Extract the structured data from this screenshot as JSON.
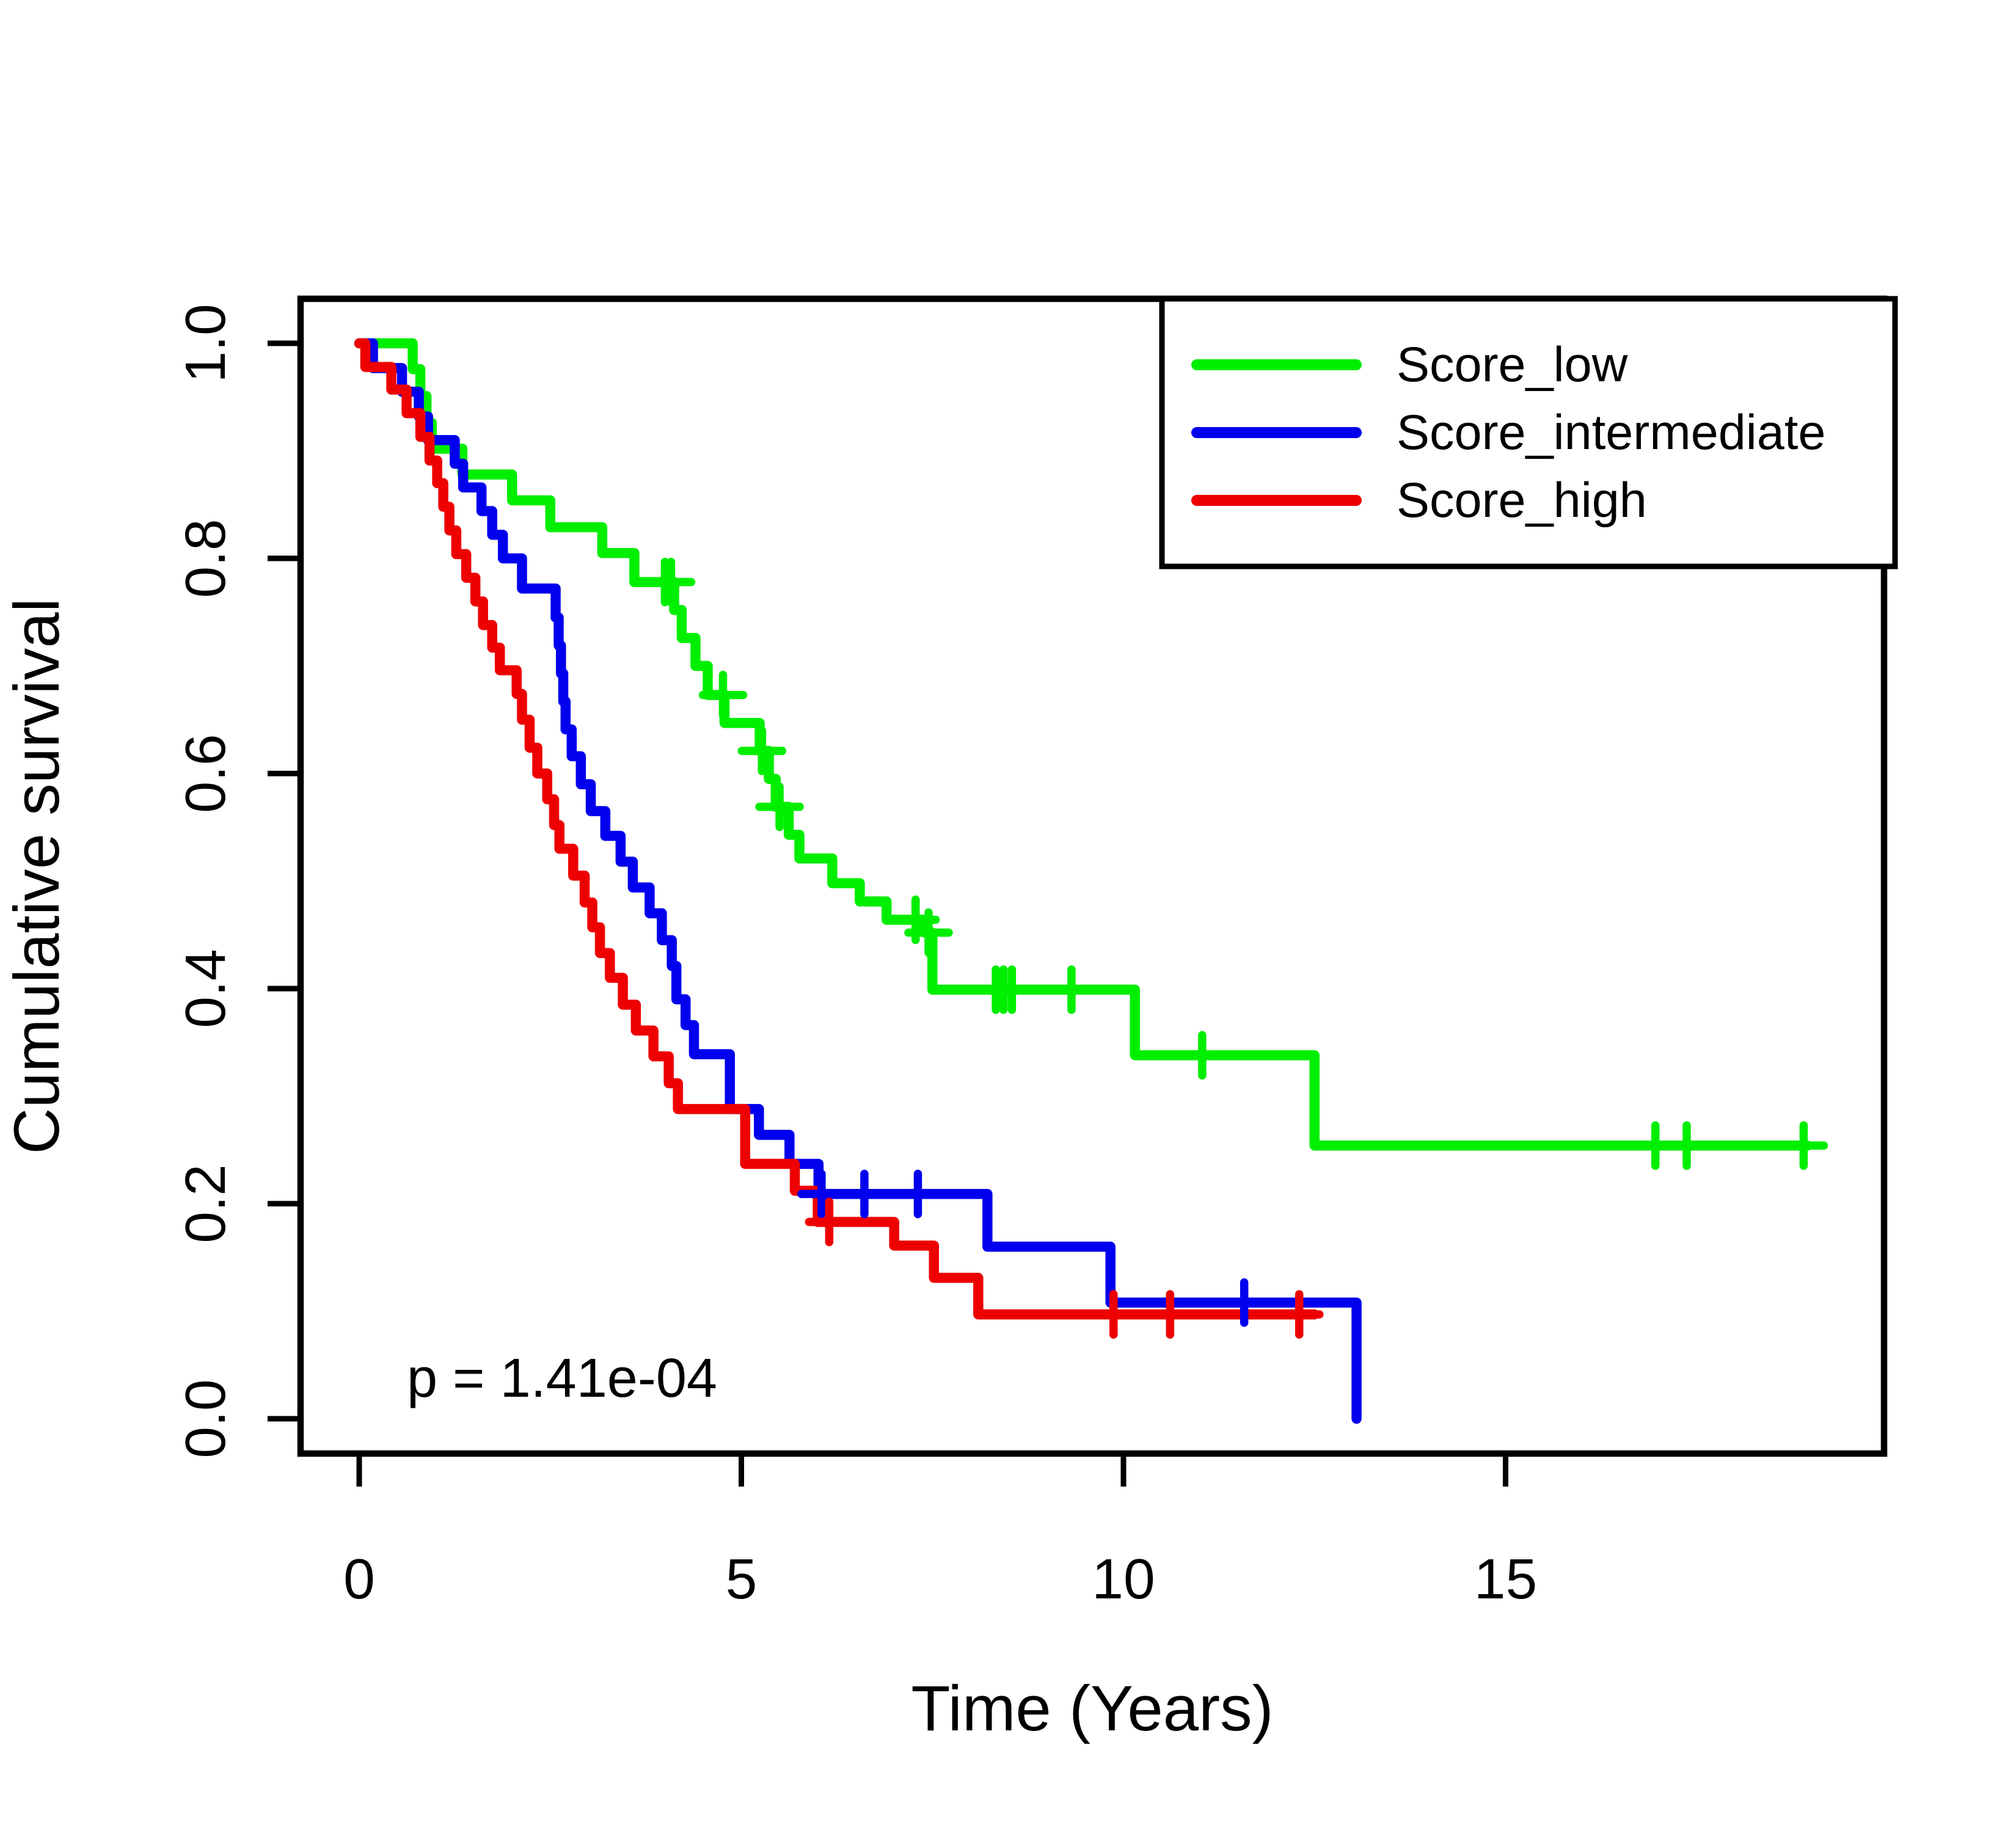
{
  "chart_data": {
    "type": "line",
    "subtype": "kaplan-meier-step",
    "title": "",
    "xlabel": "Time (Years)",
    "ylabel": "Cumulative survival",
    "annotation": "p = 1.41e-04",
    "xlim": [
      -0.77,
      20.0
    ],
    "ylim": [
      -0.04,
      1.04
    ],
    "x_ticks": [
      0,
      5,
      10,
      15
    ],
    "y_ticks": [
      "0.0",
      "0.2",
      "0.4",
      "0.6",
      "0.8",
      "1.0"
    ],
    "grid": false,
    "legend_position": "top-right",
    "frame_color": "#000000",
    "background_color": "#ffffff",
    "series": [
      {
        "name": "Score_low",
        "color": "#00ee00",
        "steps": [
          [
            0,
            1.0
          ],
          [
            0.7,
            0.976
          ],
          [
            0.8,
            0.951
          ],
          [
            0.88,
            0.926
          ],
          [
            0.95,
            0.902
          ],
          [
            1.35,
            0.878
          ],
          [
            2.0,
            0.854
          ],
          [
            2.5,
            0.829
          ],
          [
            3.18,
            0.805
          ],
          [
            3.6,
            0.778
          ],
          [
            4.12,
            0.752
          ],
          [
            4.22,
            0.726
          ],
          [
            4.4,
            0.7
          ],
          [
            4.56,
            0.673
          ],
          [
            4.78,
            0.647
          ],
          [
            5.24,
            0.621
          ],
          [
            5.36,
            0.595
          ],
          [
            5.45,
            0.569
          ],
          [
            5.62,
            0.543
          ],
          [
            5.76,
            0.521
          ],
          [
            6.19,
            0.498
          ],
          [
            6.55,
            0.481
          ],
          [
            6.9,
            0.464
          ],
          [
            7.4,
            0.452
          ],
          [
            7.5,
            0.399
          ],
          [
            10.15,
            0.338
          ],
          [
            12.5,
            0.254
          ]
        ],
        "end_time": 18.95,
        "censor_marks": [
          [
            4.0,
            0.778
          ],
          [
            4.08,
            0.778
          ],
          [
            4.76,
            0.673
          ],
          [
            5.27,
            0.621
          ],
          [
            5.5,
            0.569
          ],
          [
            7.28,
            0.464
          ],
          [
            7.45,
            0.452
          ],
          [
            8.33,
            0.399
          ],
          [
            8.43,
            0.399
          ],
          [
            8.54,
            0.399
          ],
          [
            9.32,
            0.399
          ],
          [
            11.03,
            0.338
          ],
          [
            16.96,
            0.254
          ],
          [
            17.37,
            0.254
          ],
          [
            18.9,
            0.254
          ]
        ]
      },
      {
        "name": "Score_intermediate",
        "color": "#0000ee",
        "steps": [
          [
            0,
            1.0
          ],
          [
            0.18,
            0.977
          ],
          [
            0.56,
            0.955
          ],
          [
            0.78,
            0.932
          ],
          [
            0.9,
            0.91
          ],
          [
            1.25,
            0.888
          ],
          [
            1.36,
            0.866
          ],
          [
            1.6,
            0.844
          ],
          [
            1.74,
            0.822
          ],
          [
            1.88,
            0.8
          ],
          [
            2.13,
            0.772
          ],
          [
            2.57,
            0.745
          ],
          [
            2.61,
            0.719
          ],
          [
            2.64,
            0.693
          ],
          [
            2.67,
            0.667
          ],
          [
            2.7,
            0.641
          ],
          [
            2.78,
            0.616
          ],
          [
            2.9,
            0.59
          ],
          [
            3.03,
            0.565
          ],
          [
            3.22,
            0.542
          ],
          [
            3.42,
            0.518
          ],
          [
            3.58,
            0.494
          ],
          [
            3.8,
            0.47
          ],
          [
            3.96,
            0.445
          ],
          [
            4.09,
            0.421
          ],
          [
            4.15,
            0.39
          ],
          [
            4.27,
            0.366
          ],
          [
            4.38,
            0.339
          ],
          [
            4.85,
            0.288
          ],
          [
            5.23,
            0.264
          ],
          [
            5.63,
            0.237
          ],
          [
            6.01,
            0.209
          ],
          [
            8.22,
            0.16
          ],
          [
            9.83,
            0.108
          ],
          [
            13.05,
            0.0
          ]
        ],
        "end_time": 13.05,
        "censor_marks": [
          [
            6.05,
            0.209
          ],
          [
            6.61,
            0.209
          ],
          [
            7.31,
            0.209
          ],
          [
            11.58,
            0.108
          ]
        ]
      },
      {
        "name": "Score_high",
        "color": "#ee0000",
        "steps": [
          [
            0,
            1.0
          ],
          [
            0.08,
            0.978
          ],
          [
            0.42,
            0.957
          ],
          [
            0.62,
            0.935
          ],
          [
            0.8,
            0.913
          ],
          [
            0.92,
            0.891
          ],
          [
            1.02,
            0.87
          ],
          [
            1.1,
            0.848
          ],
          [
            1.18,
            0.826
          ],
          [
            1.27,
            0.804
          ],
          [
            1.4,
            0.782
          ],
          [
            1.52,
            0.76
          ],
          [
            1.62,
            0.738
          ],
          [
            1.74,
            0.717
          ],
          [
            1.84,
            0.696
          ],
          [
            2.06,
            0.674
          ],
          [
            2.13,
            0.65
          ],
          [
            2.23,
            0.624
          ],
          [
            2.33,
            0.6
          ],
          [
            2.46,
            0.576
          ],
          [
            2.55,
            0.552
          ],
          [
            2.62,
            0.53
          ],
          [
            2.8,
            0.505
          ],
          [
            2.95,
            0.48
          ],
          [
            3.05,
            0.457
          ],
          [
            3.15,
            0.433
          ],
          [
            3.28,
            0.41
          ],
          [
            3.45,
            0.385
          ],
          [
            3.62,
            0.361
          ],
          [
            3.85,
            0.337
          ],
          [
            4.05,
            0.312
          ],
          [
            4.17,
            0.288
          ],
          [
            5.05,
            0.237
          ],
          [
            5.7,
            0.212
          ],
          [
            6.0,
            0.183
          ],
          [
            7.0,
            0.161
          ],
          [
            7.52,
            0.131
          ],
          [
            8.1,
            0.097
          ]
        ],
        "end_time": 12.5,
        "censor_marks": [
          [
            6.15,
            0.183
          ],
          [
            9.87,
            0.097
          ],
          [
            10.61,
            0.097
          ],
          [
            12.3,
            0.097
          ]
        ]
      }
    ]
  }
}
